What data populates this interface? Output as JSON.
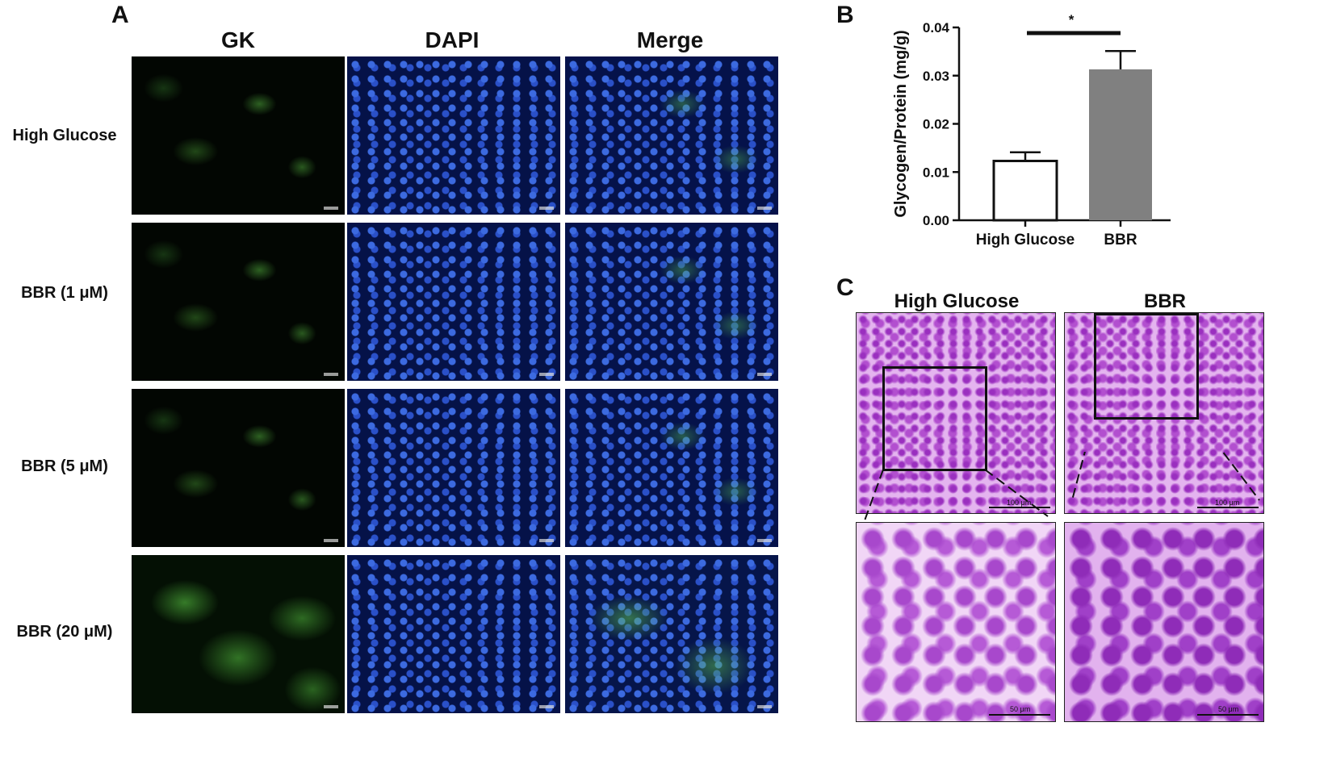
{
  "panels": {
    "a": {
      "letter": "A",
      "columns": [
        "GK",
        "DAPI",
        "Merge"
      ],
      "rows": [
        "High Glucose",
        "BBR (1 μM)",
        "BBR (5 μM)",
        "BBR (20 μM)"
      ]
    },
    "b": {
      "letter": "B"
    },
    "c": {
      "letter": "C",
      "groups": [
        "High Glucose",
        "BBR"
      ],
      "scalebar_top": "100 μm",
      "scalebar_bottom": "50 μm"
    }
  },
  "chart_data": {
    "type": "bar",
    "categories": [
      "High Glucose",
      "BBR"
    ],
    "values": [
      0.0123,
      0.0313
    ],
    "errors": [
      0.0018,
      0.0038
    ],
    "ylabel": "Glycogen/Protein (mg/g)",
    "ylim": [
      0,
      0.04
    ],
    "yticks": [
      0.0,
      0.01,
      0.02,
      0.03,
      0.04
    ],
    "ytick_labels": [
      "0.00",
      "0.01",
      "0.02",
      "0.03",
      "0.04"
    ],
    "bar_colors": [
      "#ffffff",
      "#808080"
    ],
    "significance": "*"
  }
}
